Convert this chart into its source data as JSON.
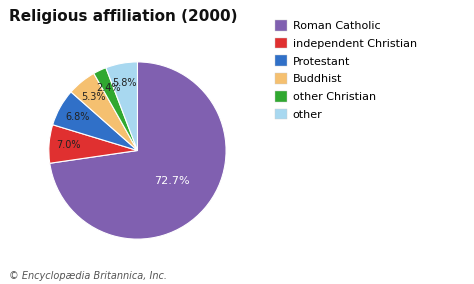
{
  "title": "Religious affiliation (2000)",
  "title_fontsize": 11,
  "labels": [
    "Roman Catholic",
    "independent Christian",
    "Protestant",
    "Buddhist",
    "other Christian",
    "other"
  ],
  "values": [
    72.7,
    7.0,
    6.8,
    5.3,
    2.4,
    5.8
  ],
  "colors": [
    "#8060b0",
    "#e03030",
    "#3070c8",
    "#f5c070",
    "#30a830",
    "#a8d8f0"
  ],
  "pct_labels": [
    "72.7%",
    "7.0%",
    "6.8%",
    "5.3%",
    "2.4%",
    "5.8%"
  ],
  "footnote": "© Encyclopædia Britannica, Inc.",
  "footnote_fontsize": 7,
  "background_color": "#ffffff",
  "legend_fontsize": 8
}
